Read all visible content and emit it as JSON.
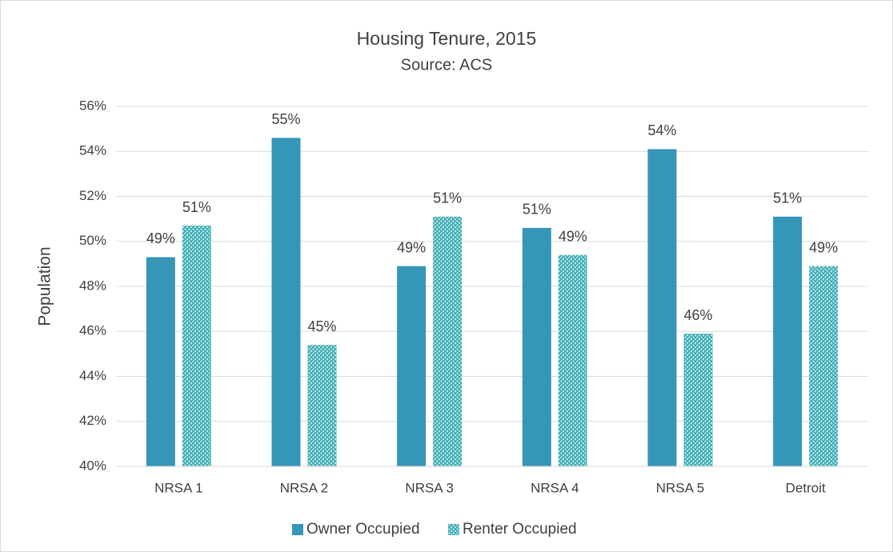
{
  "chart_data": {
    "type": "bar",
    "title": "Housing Tenure, 2015",
    "subtitle": "Source: ACS",
    "y_label": "Population",
    "categories": [
      "NRSA 1",
      "NRSA 2",
      "NRSA 3",
      "NRSA 4",
      "NRSA 5",
      "Detroit"
    ],
    "series": [
      {
        "name": "Owner Occupied",
        "color": "#3596b8",
        "pattern": "solid",
        "values": [
          49.3,
          54.6,
          48.9,
          50.6,
          54.1,
          51.1
        ],
        "value_labels": [
          "49%",
          "55%",
          "49%",
          "51%",
          "54%",
          "51%"
        ]
      },
      {
        "name": "Renter Occupied",
        "color": "#4ab3ba",
        "pattern": "dots",
        "values": [
          50.7,
          45.4,
          51.1,
          49.4,
          45.9,
          48.9
        ],
        "value_labels": [
          "51%",
          "45%",
          "51%",
          "49%",
          "46%",
          "49%"
        ]
      }
    ],
    "ylim": [
      40,
      56
    ],
    "yticks": [
      {
        "value": 40,
        "label": "40%"
      },
      {
        "value": 42,
        "label": "42%"
      },
      {
        "value": 44,
        "label": "44%"
      },
      {
        "value": 46,
        "label": "46%"
      },
      {
        "value": 48,
        "label": "48%"
      },
      {
        "value": 50,
        "label": "50%"
      },
      {
        "value": 52,
        "label": "52%"
      },
      {
        "value": 54,
        "label": "54%"
      },
      {
        "value": 56,
        "label": "56%"
      }
    ],
    "grid": true,
    "legend": "bottom"
  }
}
